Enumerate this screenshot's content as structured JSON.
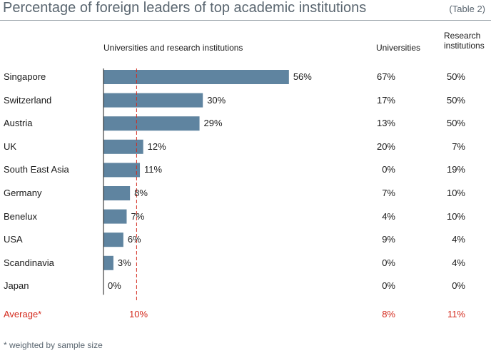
{
  "header": {
    "title": "Percentage of foreign leaders of top academic institutions",
    "table_ref": "(Table 2)",
    "col_bars": "Universities and research institutions",
    "col_universities": "Universities",
    "col_research": "Research institutions"
  },
  "colors": {
    "bar": "#5f84a0",
    "average": "#d42b1e",
    "axis": "#1a1a1a"
  },
  "chart_data": {
    "type": "bar",
    "orientation": "horizontal",
    "categories": [
      "Singapore",
      "Switzerland",
      "Austria",
      "UK",
      "South East Asia",
      "Germany",
      "Benelux",
      "USA",
      "Scandinavia",
      "Japan"
    ],
    "series": [
      {
        "name": "Universities and research institutions",
        "values": [
          56,
          30,
          29,
          12,
          11,
          8,
          7,
          6,
          3,
          0
        ],
        "labels": [
          "56%",
          "30%",
          "29%",
          "12%",
          "11%",
          "8%",
          "7%",
          "6%",
          "3%",
          "0%"
        ]
      },
      {
        "name": "Universities",
        "values": [
          67,
          17,
          13,
          20,
          0,
          7,
          4,
          9,
          0,
          0
        ],
        "labels": [
          "67%",
          "17%",
          "13%",
          "20%",
          "0%",
          "7%",
          "4%",
          "9%",
          "0%",
          "0%"
        ]
      },
      {
        "name": "Research institutions",
        "values": [
          50,
          50,
          50,
          7,
          19,
          10,
          10,
          4,
          4,
          0
        ],
        "labels": [
          "50%",
          "50%",
          "50%",
          "7%",
          "19%",
          "10%",
          "10%",
          "4%",
          "4%",
          "0%"
        ]
      }
    ],
    "average": {
      "label": "Average*",
      "combined": 10,
      "combined_label": "10%",
      "universities": 8,
      "universities_label": "8%",
      "research": 11,
      "research_label": "11%"
    },
    "reference_line": 10,
    "footnote": "* weighted by sample size"
  }
}
